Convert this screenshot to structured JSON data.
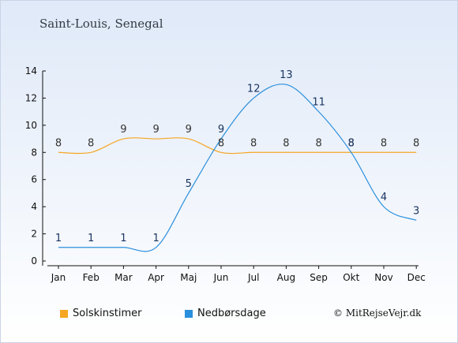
{
  "title": "Saint-Louis, Senegal",
  "copyright": "© MitRejseVejr.dk",
  "colors": {
    "sun": "#f5a623",
    "rain": "#2a8fdc"
  },
  "chart_data": {
    "type": "line",
    "categories": [
      "Jan",
      "Feb",
      "Mar",
      "Apr",
      "Maj",
      "Jun",
      "Jul",
      "Aug",
      "Sep",
      "Okt",
      "Nov",
      "Dec"
    ],
    "series": [
      {
        "name": "Solskinstimer",
        "values": [
          8,
          8,
          9,
          9,
          9,
          8,
          8,
          8,
          8,
          8,
          8,
          8
        ]
      },
      {
        "name": "Nedbørsdage",
        "values": [
          1,
          1,
          1,
          1,
          5,
          9,
          12,
          13,
          11,
          8,
          4,
          3
        ]
      }
    ],
    "yticks": [
      0,
      2,
      4,
      6,
      8,
      10,
      12,
      14
    ],
    "ylim": [
      0,
      14
    ],
    "grid": false,
    "legend": "bottom-left"
  }
}
